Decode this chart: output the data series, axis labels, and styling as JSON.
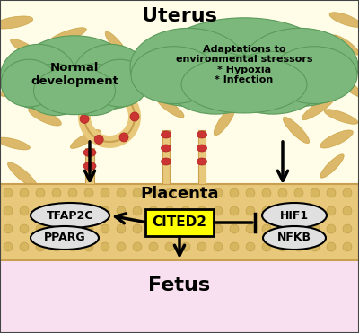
{
  "bg_uterus": "#fffde7",
  "bg_fetus": "#f8e0f0",
  "cloud_color": "#7cb87c",
  "cloud_edge": "#5a9a5a",
  "placenta_fill": "#e8c87a",
  "placenta_edge": "#c8a050",
  "title_uterus": "Uterus",
  "title_placenta": "Placenta",
  "title_fetus": "Fetus",
  "label_normal": "Normal\ndevelopment",
  "label_adaptations": "Adaptations to\nenvironmental stressors\n* Hypoxia\n* Infection",
  "label_cited2": "CITED2",
  "label_tfap2c": "TFAP2C",
  "label_pparg": "PPARG",
  "label_hif1": "HIF1",
  "label_nfkb": "NFKB",
  "spindle_color": "#d4a84b",
  "spindle_edge": "#c49a35",
  "red_cell_color": "#cc3333",
  "red_cell_edge": "#aa2222",
  "ellipse_bg": "#e0e0e0",
  "cited2_bg": "#ffff00",
  "cited2_border": "#000000",
  "arrow_color": "#000000",
  "border_color": "#555555",
  "spindles": [
    [
      30,
      55,
      42,
      11,
      30
    ],
    [
      75,
      40,
      45,
      11,
      -20
    ],
    [
      130,
      50,
      38,
      10,
      50
    ],
    [
      170,
      65,
      42,
      11,
      -40
    ],
    [
      215,
      48,
      35,
      10,
      20
    ],
    [
      260,
      58,
      40,
      12,
      -30
    ],
    [
      305,
      42,
      38,
      11,
      10
    ],
    [
      345,
      60,
      44,
      12,
      -50
    ],
    [
      385,
      50,
      36,
      10,
      35
    ],
    [
      20,
      100,
      42,
      11,
      -15
    ],
    [
      388,
      95,
      38,
      10,
      40
    ],
    [
      50,
      130,
      40,
      12,
      25
    ],
    [
      355,
      120,
      45,
      11,
      -35
    ],
    [
      15,
      160,
      38,
      10,
      15
    ],
    [
      375,
      155,
      40,
      12,
      -25
    ],
    [
      25,
      195,
      42,
      11,
      40
    ],
    [
      370,
      185,
      36,
      10,
      -45
    ],
    [
      15,
      25,
      44,
      12,
      -10
    ],
    [
      385,
      22,
      38,
      11,
      20
    ],
    [
      155,
      85,
      40,
      11,
      -60
    ],
    [
      320,
      90,
      42,
      12,
      55
    ],
    [
      280,
      70,
      35,
      10,
      -20
    ],
    [
      95,
      155,
      38,
      10,
      -30
    ],
    [
      330,
      145,
      40,
      11,
      45
    ],
    [
      190,
      120,
      36,
      10,
      35
    ],
    [
      250,
      135,
      38,
      11,
      -55
    ],
    [
      380,
      130,
      40,
      10,
      20
    ]
  ]
}
